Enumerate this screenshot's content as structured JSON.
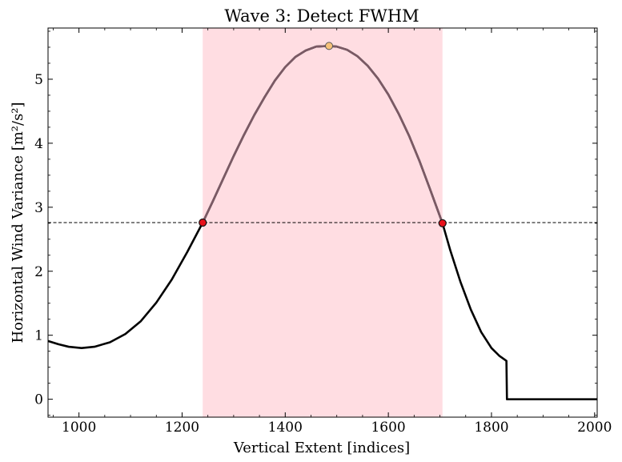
{
  "chart_data": {
    "type": "line",
    "title": "Wave 3: Detect FWHM",
    "xlabel": "Vertical Extent [indices]",
    "ylabel": "Horizontal Wind Variance [m²/s²]",
    "xlim": [
      940,
      2005
    ],
    "ylim": [
      -0.28,
      5.8
    ],
    "xticks": [
      1000,
      1200,
      1400,
      1600,
      1800,
      2000
    ],
    "yticks": [
      0,
      1,
      2,
      3,
      4,
      5
    ],
    "grid": false,
    "legend": "none",
    "series": [
      {
        "points": [
          [
            940,
            0.91
          ],
          [
            960,
            0.86
          ],
          [
            980,
            0.82
          ],
          [
            1005,
            0.8
          ],
          [
            1030,
            0.82
          ],
          [
            1060,
            0.89
          ],
          [
            1090,
            1.02
          ],
          [
            1120,
            1.22
          ],
          [
            1150,
            1.51
          ],
          [
            1180,
            1.87
          ],
          [
            1210,
            2.3
          ],
          [
            1240,
            2.76
          ],
          [
            1260,
            3.1
          ],
          [
            1280,
            3.45
          ],
          [
            1300,
            3.8
          ],
          [
            1320,
            4.13
          ],
          [
            1340,
            4.44
          ],
          [
            1360,
            4.72
          ],
          [
            1380,
            4.98
          ],
          [
            1400,
            5.19
          ],
          [
            1420,
            5.35
          ],
          [
            1440,
            5.45
          ],
          [
            1460,
            5.51
          ],
          [
            1485,
            5.52
          ],
          [
            1500,
            5.51
          ],
          [
            1520,
            5.46
          ],
          [
            1540,
            5.36
          ],
          [
            1560,
            5.21
          ],
          [
            1580,
            5.01
          ],
          [
            1600,
            4.76
          ],
          [
            1620,
            4.46
          ],
          [
            1640,
            4.12
          ],
          [
            1660,
            3.73
          ],
          [
            1680,
            3.3
          ],
          [
            1705,
            2.75
          ],
          [
            1720,
            2.33
          ],
          [
            1740,
            1.83
          ],
          [
            1760,
            1.4
          ],
          [
            1780,
            1.05
          ],
          [
            1800,
            0.8
          ],
          [
            1815,
            0.68
          ],
          [
            1829,
            0.6
          ],
          [
            1830,
            0.0
          ],
          [
            2005,
            0.0
          ]
        ],
        "color": "#000000"
      }
    ],
    "highlight_span": {
      "x": [
        1240,
        1705
      ],
      "color": "#ffdde2"
    },
    "half_max_line": {
      "y": 2.76
    },
    "peak_marker": {
      "x": 1485,
      "y": 5.52,
      "color": "#f7c27a"
    },
    "half_max_markers": [
      {
        "x": 1240,
        "y": 2.76,
        "color": "#e8101a"
      },
      {
        "x": 1705,
        "y": 2.75,
        "color": "#e8101a"
      }
    ],
    "inside_span_color": "#7b5a65"
  }
}
